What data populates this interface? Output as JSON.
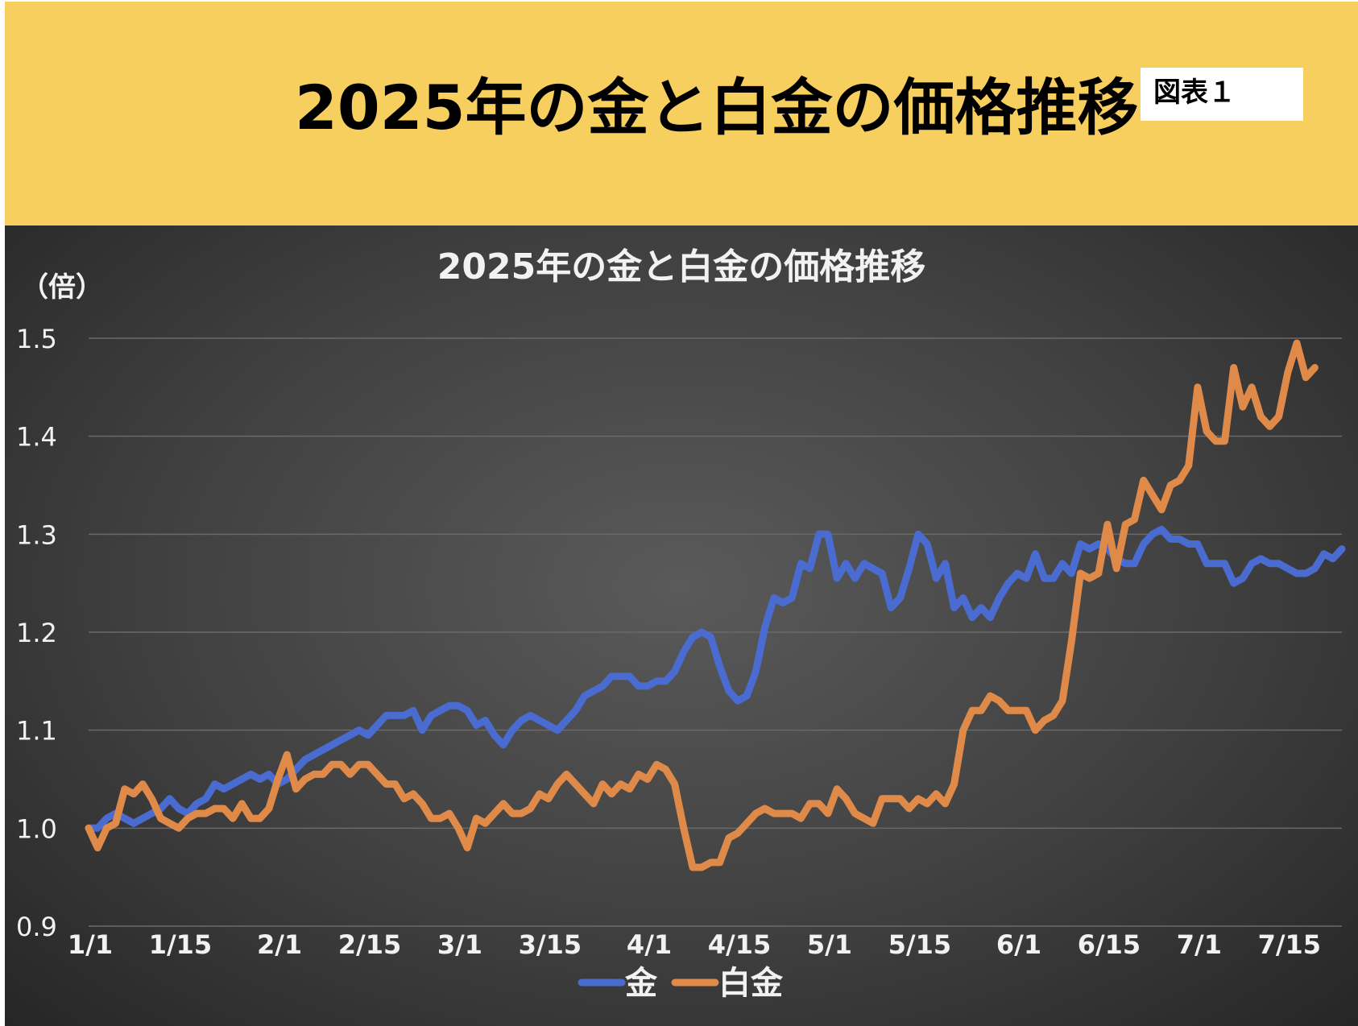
{
  "header": {
    "title": "2025年の金と白金の価格推移",
    "badge": "図表１"
  },
  "colors": {
    "banner": "#f7cf5e",
    "gold_series": "#4a6bd0",
    "platinum_series": "#e08a4a",
    "chart_background": "#404040",
    "gridline": "#6a6a6a",
    "text_light": "#f2f2f2"
  },
  "chart_data": {
    "type": "line",
    "title": "2025年の金と白金の価格推移",
    "ylabel": "（倍）",
    "xlabel": "",
    "ylim": [
      0.9,
      1.5
    ],
    "yticks": [
      "1.5",
      "1.4",
      "1.3",
      "1.2",
      "1.1",
      "1.0",
      "0.9"
    ],
    "x_tick_labels": [
      "1/1",
      "1/15",
      "2/1",
      "2/15",
      "3/1",
      "3/15",
      "4/1",
      "4/15",
      "5/1",
      "5/15",
      "6/1",
      "6/15",
      "7/1",
      "7/15"
    ],
    "x_tick_index": [
      0,
      10,
      21,
      31,
      41,
      51,
      62,
      72,
      82,
      92,
      103,
      113,
      123,
      133
    ],
    "grid": true,
    "legend_position": "bottom",
    "series": [
      {
        "name": "金",
        "color": "#4a6bd0",
        "values": [
          1.0,
          1.0,
          1.01,
          1.015,
          1.01,
          1.005,
          1.01,
          1.015,
          1.02,
          1.03,
          1.02,
          1.015,
          1.025,
          1.03,
          1.045,
          1.04,
          1.045,
          1.05,
          1.055,
          1.05,
          1.055,
          1.045,
          1.05,
          1.06,
          1.07,
          1.075,
          1.08,
          1.085,
          1.09,
          1.095,
          1.1,
          1.095,
          1.105,
          1.115,
          1.115,
          1.115,
          1.12,
          1.1,
          1.115,
          1.12,
          1.125,
          1.125,
          1.12,
          1.105,
          1.11,
          1.095,
          1.085,
          1.1,
          1.11,
          1.115,
          1.11,
          1.105,
          1.1,
          1.11,
          1.12,
          1.135,
          1.14,
          1.145,
          1.155,
          1.155,
          1.155,
          1.145,
          1.145,
          1.15,
          1.15,
          1.16,
          1.18,
          1.195,
          1.2,
          1.195,
          1.165,
          1.14,
          1.13,
          1.135,
          1.16,
          1.205,
          1.235,
          1.23,
          1.235,
          1.27,
          1.265,
          1.3,
          1.3,
          1.255,
          1.27,
          1.255,
          1.27,
          1.265,
          1.26,
          1.225,
          1.235,
          1.265,
          1.3,
          1.29,
          1.255,
          1.27,
          1.225,
          1.235,
          1.215,
          1.225,
          1.215,
          1.235,
          1.25,
          1.26,
          1.255,
          1.28,
          1.255,
          1.255,
          1.27,
          1.26,
          1.29,
          1.285,
          1.29,
          1.285,
          1.275,
          1.27,
          1.27,
          1.29,
          1.3,
          1.305,
          1.295,
          1.295,
          1.29,
          1.29,
          1.27,
          1.27,
          1.27,
          1.25,
          1.255,
          1.27,
          1.275,
          1.27,
          1.27,
          1.265,
          1.26,
          1.26,
          1.265,
          1.28,
          1.275,
          1.285
        ]
      },
      {
        "name": "白金",
        "color": "#e08a4a",
        "values": [
          1.0,
          0.98,
          1.0,
          1.005,
          1.04,
          1.035,
          1.045,
          1.03,
          1.01,
          1.005,
          1.0,
          1.01,
          1.015,
          1.015,
          1.02,
          1.02,
          1.01,
          1.025,
          1.01,
          1.01,
          1.02,
          1.05,
          1.075,
          1.04,
          1.05,
          1.055,
          1.055,
          1.065,
          1.065,
          1.055,
          1.065,
          1.065,
          1.055,
          1.045,
          1.045,
          1.03,
          1.035,
          1.025,
          1.01,
          1.01,
          1.015,
          1.0,
          0.98,
          1.01,
          1.005,
          1.015,
          1.025,
          1.015,
          1.015,
          1.02,
          1.035,
          1.03,
          1.045,
          1.055,
          1.045,
          1.035,
          1.025,
          1.045,
          1.035,
          1.045,
          1.04,
          1.055,
          1.05,
          1.065,
          1.06,
          1.045,
          1.0,
          0.96,
          0.96,
          0.965,
          0.965,
          0.99,
          0.995,
          1.005,
          1.015,
          1.02,
          1.015,
          1.015,
          1.015,
          1.01,
          1.025,
          1.025,
          1.015,
          1.04,
          1.03,
          1.015,
          1.01,
          1.005,
          1.03,
          1.03,
          1.03,
          1.02,
          1.03,
          1.025,
          1.035,
          1.025,
          1.045,
          1.1,
          1.12,
          1.12,
          1.135,
          1.13,
          1.12,
          1.12,
          1.12,
          1.1,
          1.11,
          1.115,
          1.13,
          1.19,
          1.26,
          1.255,
          1.26,
          1.31,
          1.265,
          1.31,
          1.315,
          1.355,
          1.34,
          1.325,
          1.35,
          1.355,
          1.37,
          1.45,
          1.405,
          1.395,
          1.395,
          1.47,
          1.43,
          1.45,
          1.42,
          1.41,
          1.42,
          1.465,
          1.495,
          1.46,
          1.47
        ]
      }
    ]
  }
}
